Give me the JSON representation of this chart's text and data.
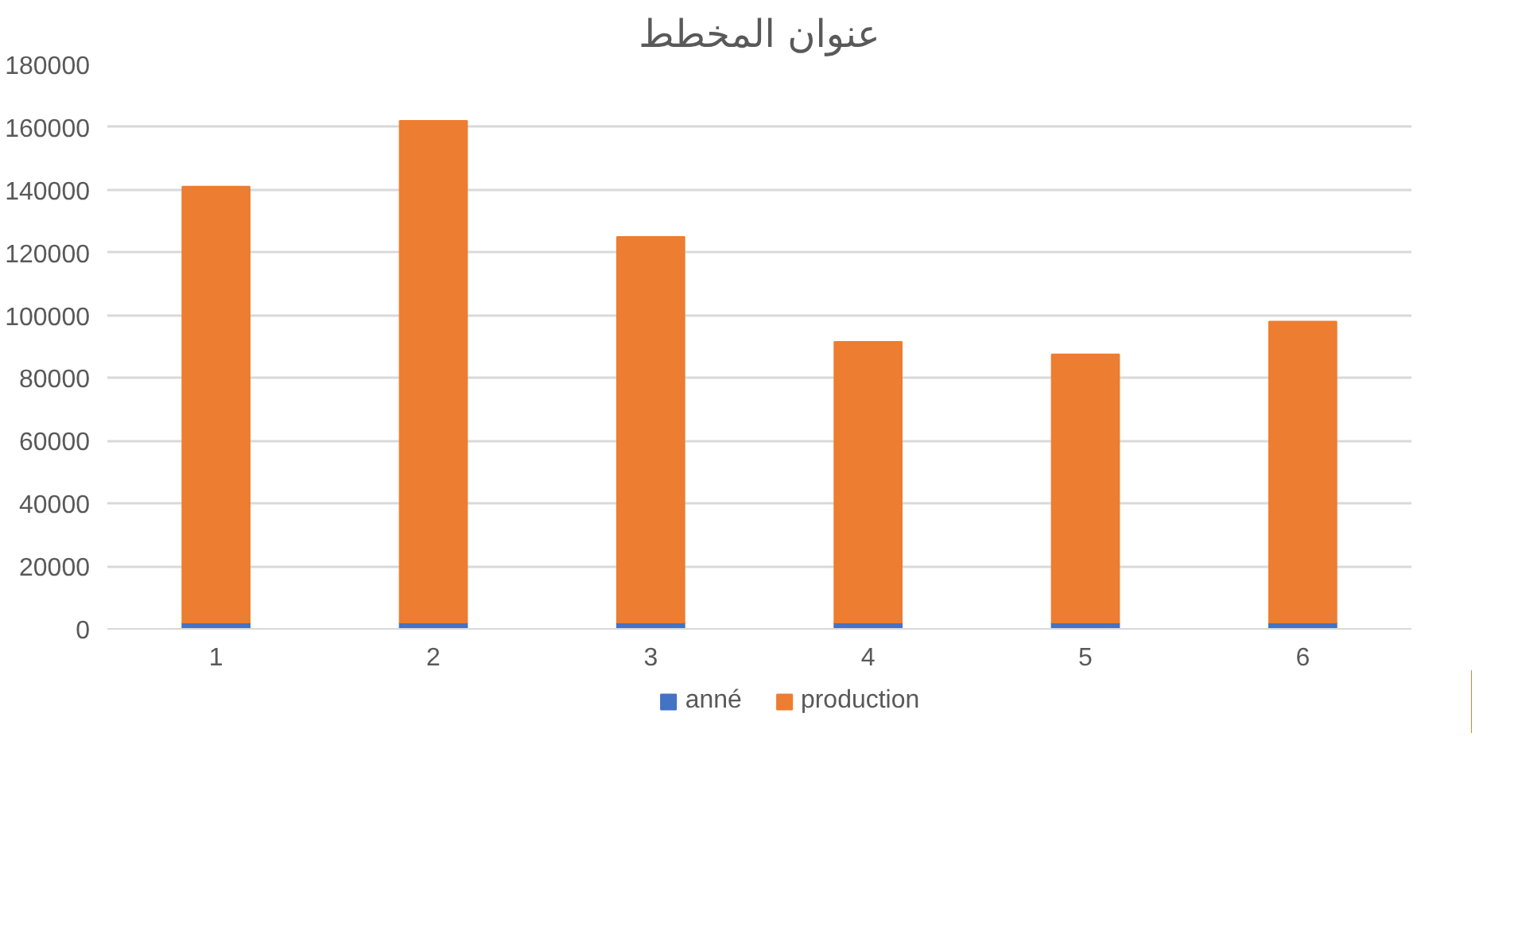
{
  "chart_data": {
    "type": "bar",
    "title": "عنوان المخطط",
    "stacked": true,
    "categories": [
      "1",
      "2",
      "3",
      "4",
      "5",
      "6"
    ],
    "series": [
      {
        "name": "anné",
        "color": "#4472c4",
        "values": [
          2000,
          2000,
          2000,
          2000,
          2000,
          2000
        ]
      },
      {
        "name": "production",
        "color": "#ed7d31",
        "values": [
          139000,
          160000,
          123000,
          89500,
          85500,
          96000
        ]
      }
    ],
    "ylim": [
      0,
      180000
    ],
    "yticks": [
      0,
      20000,
      40000,
      60000,
      80000,
      100000,
      120000,
      140000,
      160000,
      180000
    ],
    "grid": "y",
    "legend": "bottom"
  }
}
